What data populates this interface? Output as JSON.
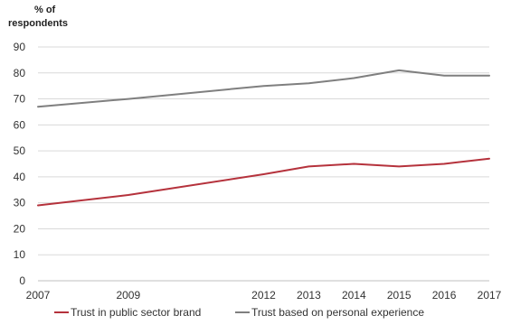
{
  "chart_data": {
    "type": "line",
    "ylabel": "% of respondents",
    "ylabel_lines": [
      "% of",
      "respondents"
    ],
    "ylim": [
      0,
      90
    ],
    "yticks": [
      0,
      10,
      20,
      30,
      40,
      50,
      60,
      70,
      80,
      90
    ],
    "xlim": [
      2007,
      2017
    ],
    "xticks": [
      2007,
      2009,
      2012,
      2013,
      2014,
      2015,
      2016,
      2017
    ],
    "grid": true,
    "legend_position": "bottom",
    "series": [
      {
        "name": "Trust in public sector brand",
        "color": "#b5323c",
        "points": [
          {
            "x": 2007,
            "y": 29
          },
          {
            "x": 2009,
            "y": 33
          },
          {
            "x": 2012,
            "y": 41
          },
          {
            "x": 2013,
            "y": 44
          },
          {
            "x": 2014,
            "y": 45
          },
          {
            "x": 2015,
            "y": 44
          },
          {
            "x": 2016,
            "y": 45
          },
          {
            "x": 2017,
            "y": 47
          }
        ]
      },
      {
        "name": "Trust based on personal experience",
        "color": "#7f7f7f",
        "points": [
          {
            "x": 2007,
            "y": 67
          },
          {
            "x": 2009,
            "y": 70
          },
          {
            "x": 2012,
            "y": 75
          },
          {
            "x": 2013,
            "y": 76
          },
          {
            "x": 2014,
            "y": 78
          },
          {
            "x": 2015,
            "y": 81
          },
          {
            "x": 2016,
            "y": 79
          },
          {
            "x": 2017,
            "y": 79
          }
        ]
      }
    ]
  }
}
